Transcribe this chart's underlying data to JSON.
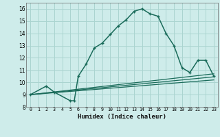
{
  "xlabel": "Humidex (Indice chaleur)",
  "bg_color": "#ceecea",
  "line_color": "#1a6b5a",
  "grid_color": "#aad4d0",
  "xlim": [
    -0.5,
    23.5
  ],
  "ylim": [
    8,
    16.5
  ],
  "xticks": [
    0,
    1,
    2,
    3,
    4,
    5,
    6,
    7,
    8,
    9,
    10,
    11,
    12,
    13,
    14,
    15,
    16,
    17,
    18,
    19,
    20,
    21,
    22,
    23
  ],
  "yticks": [
    8,
    9,
    10,
    11,
    12,
    13,
    14,
    15,
    16
  ],
  "main_x": [
    0,
    2,
    3,
    5,
    5.5,
    6,
    7,
    8,
    9,
    10,
    11,
    12,
    13,
    14,
    15,
    16,
    17,
    18,
    19,
    20,
    21,
    22,
    23
  ],
  "main_y": [
    9.0,
    9.7,
    9.2,
    8.5,
    8.5,
    10.5,
    11.5,
    12.8,
    13.2,
    13.9,
    14.6,
    15.1,
    15.8,
    16.0,
    15.6,
    15.4,
    14.0,
    13.0,
    11.2,
    10.8,
    11.8,
    11.8,
    10.5
  ],
  "line1_x": [
    0,
    23
  ],
  "line1_y": [
    9.0,
    10.2
  ],
  "line2_x": [
    0,
    23
  ],
  "line2_y": [
    9.0,
    10.45
  ],
  "line3_x": [
    0,
    23
  ],
  "line3_y": [
    9.0,
    10.7
  ]
}
